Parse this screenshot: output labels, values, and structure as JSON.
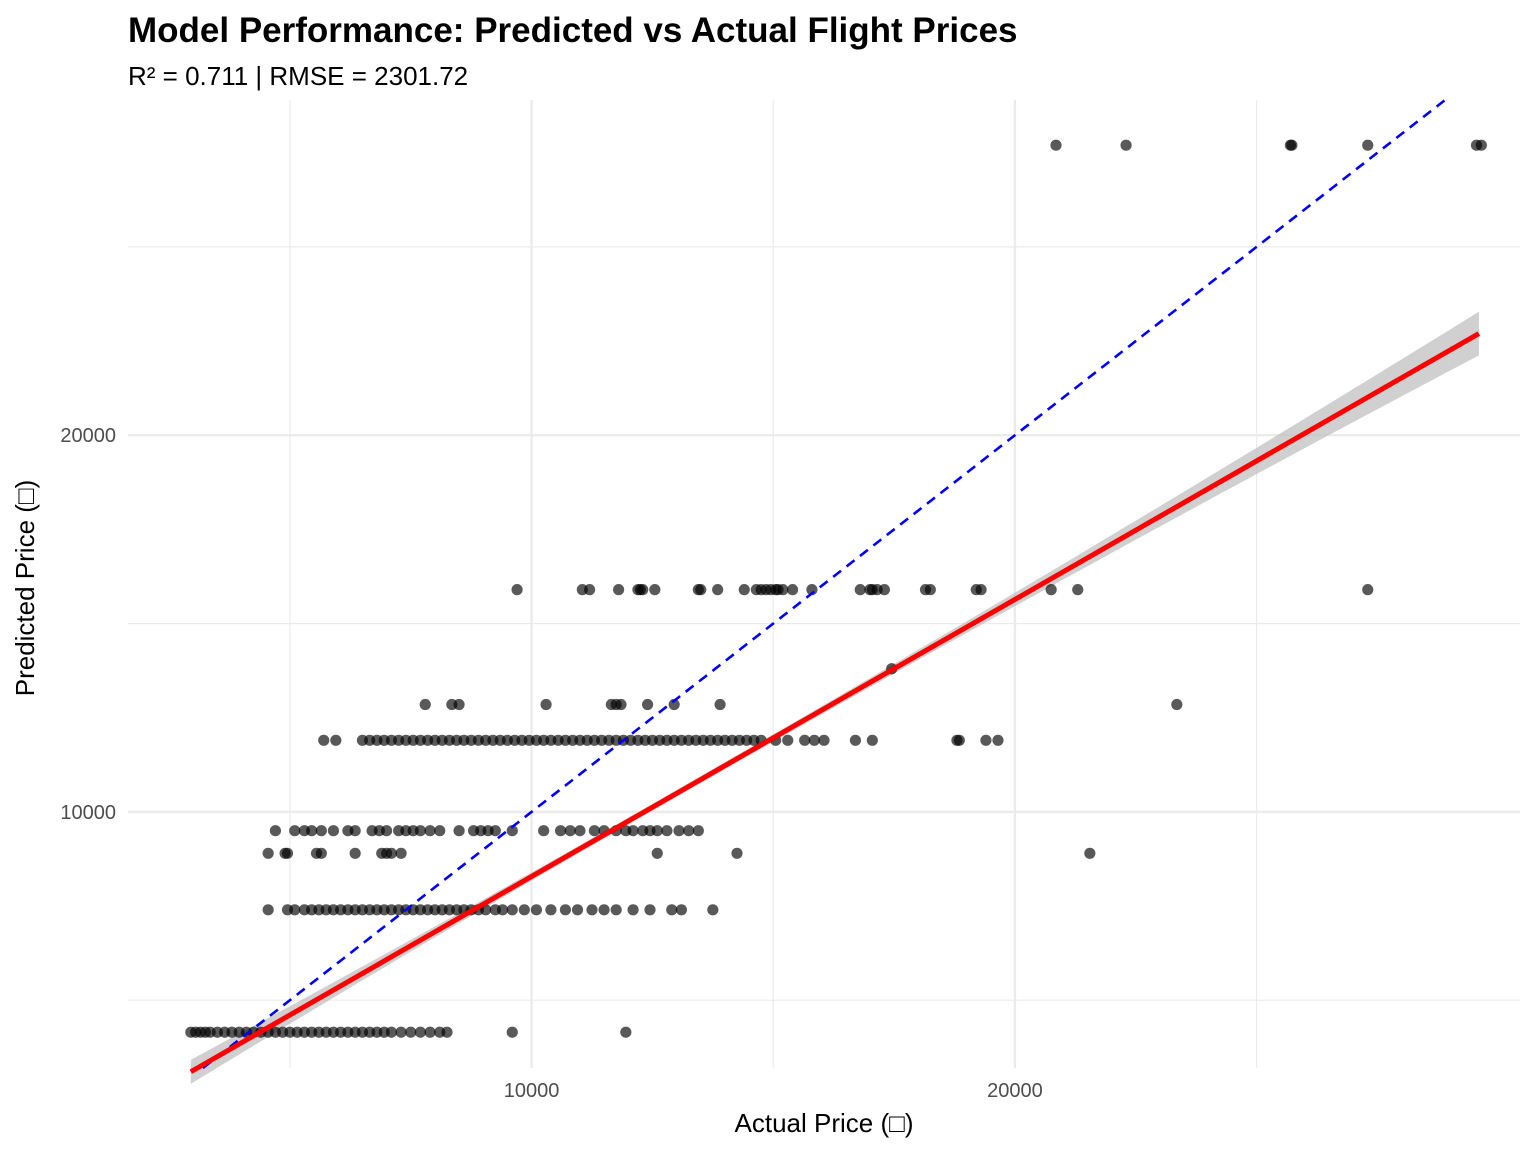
{
  "chart_data": {
    "type": "scatter",
    "title": "Model Performance: Predicted vs Actual Flight Prices",
    "subtitle": "R² = 0.711 | RMSE = 2301.72",
    "xlabel": "Actual Price (□)",
    "ylabel": "Predicted Price (□)",
    "xlim": [
      1650,
      30450
    ],
    "ylim": [
      3200,
      28900
    ],
    "x_ticks": [
      10000,
      20000
    ],
    "y_ticks": [
      10000,
      20000
    ],
    "x_minor": [
      5000,
      15000,
      25000
    ],
    "y_minor": [
      5000,
      15000,
      25000
    ],
    "grid": true,
    "colors": {
      "points": "#000000",
      "fit_line": "#ff0000",
      "confidence_band": "#bebebe",
      "reference_line": "#0000ff",
      "grid": "#ebebeb"
    },
    "points": {
      "opacity": 0.65,
      "rows": [
        {
          "y": 27700,
          "x": [
            20850,
            22300,
            25700,
            25730,
            27300,
            29550,
            29650
          ]
        },
        {
          "y": 15900,
          "x": [
            9700,
            11050,
            11200,
            11800,
            12200,
            12250,
            12300,
            12550,
            13450,
            13500,
            13850,
            14400,
            14650,
            14750,
            14850,
            14950,
            15050,
            15100,
            15200,
            15400,
            15800,
            16800,
            17000,
            17050,
            17150,
            17300,
            18150,
            18250,
            19200,
            19300,
            20750,
            21300,
            27300
          ]
        },
        {
          "y": 13800,
          "x": [
            17450
          ]
        },
        {
          "y": 12850,
          "x": [
            7800,
            8350,
            8500,
            10300,
            11650,
            11750,
            11850,
            12400,
            12950,
            13900,
            23350
          ]
        },
        {
          "y": 11900,
          "x": [
            5700,
            5950,
            6500,
            6650,
            6800,
            6950,
            7100,
            7250,
            7400,
            7550,
            7700,
            7850,
            8000,
            8150,
            8300,
            8450,
            8600,
            8750,
            8900,
            9050,
            9200,
            9350,
            9500,
            9650,
            9800,
            9950,
            10100,
            10250,
            10400,
            10550,
            10700,
            10850,
            11000,
            11150,
            11300,
            11450,
            11600,
            11750,
            11900,
            12050,
            12200,
            12350,
            12500,
            12650,
            12800,
            12950,
            13100,
            13250,
            13400,
            13550,
            13700,
            13850,
            14000,
            14150,
            14300,
            14450,
            14600,
            14750,
            15050,
            15300,
            15650,
            15850,
            16050,
            16700,
            17050,
            18800,
            18850,
            19400,
            19650
          ]
        },
        {
          "y": 9500,
          "x": [
            4700,
            5100,
            5300,
            5450,
            5650,
            5900,
            6200,
            6350,
            6700,
            6850,
            7000,
            7250,
            7400,
            7550,
            7700,
            7900,
            8100,
            8500,
            8800,
            8950,
            9100,
            9250,
            9600,
            10250,
            10600,
            10800,
            11000,
            11300,
            11500,
            11750,
            11950,
            12100,
            12300,
            12450,
            12600,
            12800,
            13050,
            13250,
            13450
          ]
        },
        {
          "y": 8900,
          "x": [
            4550,
            4900,
            4950,
            5550,
            5650,
            6350,
            6900,
            7000,
            7100,
            7300,
            12600,
            14250,
            21550
          ]
        },
        {
          "y": 7400,
          "x": [
            4550,
            4950,
            5100,
            5300,
            5450,
            5600,
            5750,
            5900,
            6050,
            6200,
            6350,
            6500,
            6650,
            6800,
            6950,
            7100,
            7250,
            7400,
            7550,
            7700,
            7850,
            8000,
            8150,
            8300,
            8450,
            8600,
            8750,
            8900,
            9050,
            9250,
            9400,
            9600,
            9850,
            10100,
            10400,
            10700,
            10950,
            11250,
            11500,
            11750,
            12100,
            12450,
            12900,
            13100,
            13750
          ]
        },
        {
          "y": 4150,
          "x": [
            2950,
            3050,
            3150,
            3250,
            3350,
            3500,
            3650,
            3800,
            3950,
            4100,
            4250,
            4400,
            4550,
            4700,
            4850,
            5000,
            5150,
            5300,
            5450,
            5600,
            5750,
            5900,
            6050,
            6200,
            6350,
            6500,
            6650,
            6800,
            6950,
            7100,
            7300,
            7500,
            7700,
            7900,
            8100,
            8250,
            9600,
            11950
          ]
        }
      ]
    },
    "fit_line": {
      "x1": 2950,
      "y1": 3100,
      "x2": 29600,
      "y2": 22700
    },
    "confidence_band": {
      "x_start": 2950,
      "x_end": 29600,
      "half_width_start": 320,
      "half_width_mid": 90,
      "half_width_end": 580,
      "x_mid": 12800
    },
    "reference_line": {
      "x1": 1650,
      "y1": 1650,
      "x2": 30450,
      "y2": 30450
    }
  }
}
